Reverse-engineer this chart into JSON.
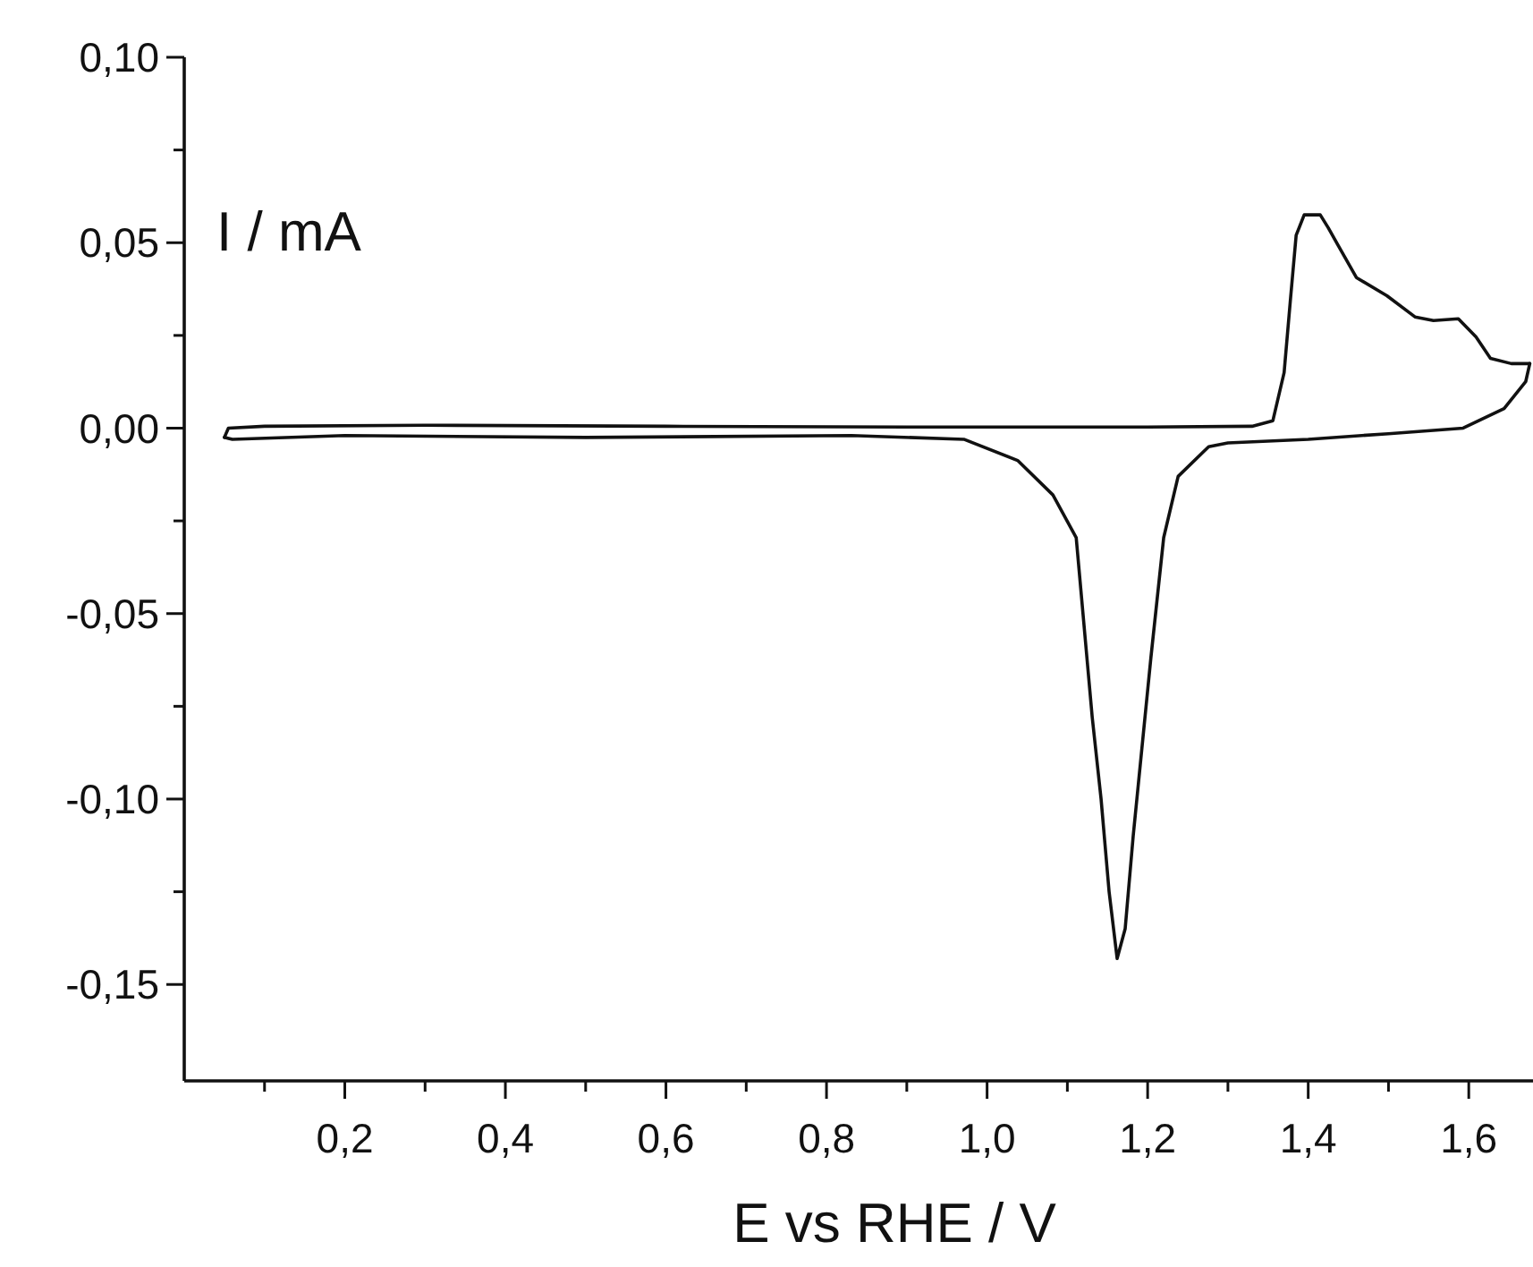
{
  "chart_data": {
    "type": "line",
    "xlabel": "E vs RHE / V",
    "ylabel": "I / mA",
    "xlim": [
      0,
      1.68
    ],
    "ylim": [
      -0.176,
      0.1
    ],
    "xticks": [
      {
        "value": 0.1,
        "label": null
      },
      {
        "value": 0.2,
        "label": "0,2"
      },
      {
        "value": 0.3,
        "label": null
      },
      {
        "value": 0.4,
        "label": "0,4"
      },
      {
        "value": 0.5,
        "label": null
      },
      {
        "value": 0.6,
        "label": "0,6"
      },
      {
        "value": 0.7,
        "label": null
      },
      {
        "value": 0.8,
        "label": "0,8"
      },
      {
        "value": 0.9,
        "label": null
      },
      {
        "value": 1.0,
        "label": "1,0"
      },
      {
        "value": 1.1,
        "label": null
      },
      {
        "value": 1.2,
        "label": "1,2"
      },
      {
        "value": 1.3,
        "label": null
      },
      {
        "value": 1.4,
        "label": "1,4"
      },
      {
        "value": 1.5,
        "label": null
      },
      {
        "value": 1.6,
        "label": "1,6"
      }
    ],
    "yticks": [
      {
        "value": -0.15,
        "label": "-0,15"
      },
      {
        "value": -0.125,
        "label": null
      },
      {
        "value": -0.1,
        "label": "-0,10"
      },
      {
        "value": -0.075,
        "label": null
      },
      {
        "value": -0.05,
        "label": "-0,05"
      },
      {
        "value": -0.025,
        "label": null
      },
      {
        "value": 0,
        "label": "0,00"
      },
      {
        "value": 0.025,
        "label": null
      },
      {
        "value": 0.05,
        "label": "0,05"
      },
      {
        "value": 0.075,
        "label": null
      },
      {
        "value": 0.1,
        "label": "0,10"
      }
    ],
    "marker": "none",
    "line_style": "solid",
    "grid": false,
    "series": [
      {
        "color": "#111111",
        "x": [
          0.05,
          0.055,
          0.1,
          0.3,
          0.6,
          0.9,
          1.2,
          1.33,
          1.356,
          1.37,
          1.378,
          1.385,
          1.395,
          1.415,
          1.425,
          1.438,
          1.46,
          1.498,
          1.533,
          1.556,
          1.587,
          1.609,
          1.627,
          1.653,
          1.676
        ],
        "values": [
          -0.0025,
          0.0,
          0.0005,
          0.0008,
          0.0005,
          0.0003,
          0.0003,
          0.0005,
          0.002,
          0.015,
          0.035,
          0.052,
          0.0575,
          0.0575,
          0.054,
          0.049,
          0.0406,
          0.0357,
          0.03,
          0.029,
          0.0295,
          0.0246,
          0.0188,
          0.0174,
          0.0174
        ]
      },
      {
        "color": "#111111",
        "x": [
          0.05,
          0.06,
          0.2,
          0.5,
          0.831,
          0.971,
          1.038,
          1.082,
          1.111,
          1.131,
          1.142,
          1.152,
          1.162,
          1.172,
          1.182,
          1.204,
          1.22,
          1.238,
          1.276,
          1.3,
          1.4,
          1.5,
          1.593,
          1.644,
          1.671,
          1.676
        ],
        "values": [
          -0.0025,
          -0.003,
          -0.002,
          -0.0025,
          -0.002,
          -0.003,
          -0.0087,
          -0.018,
          -0.0295,
          -0.078,
          -0.1,
          -0.125,
          -0.143,
          -0.135,
          -0.11,
          -0.062,
          -0.0295,
          -0.013,
          -0.005,
          -0.004,
          -0.003,
          -0.0015,
          0.0,
          0.0053,
          0.0126,
          0.0174
        ]
      }
    ]
  }
}
